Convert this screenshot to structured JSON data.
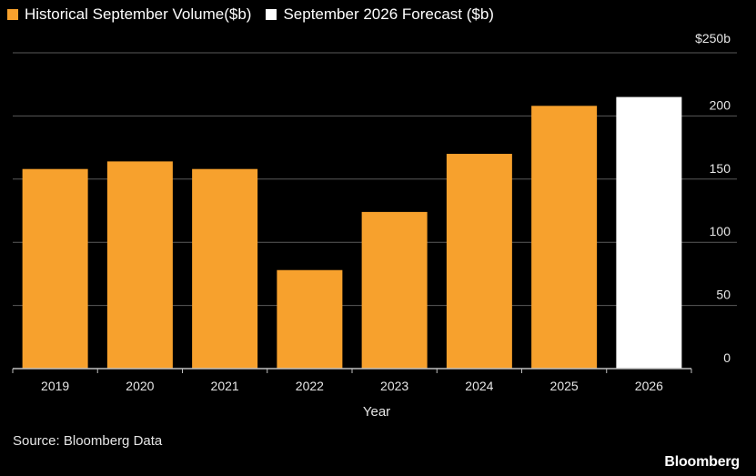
{
  "legend": [
    {
      "label": "Historical September Volume($b)",
      "color": "#f7a12d"
    },
    {
      "label": "September 2026 Forecast ($b)",
      "color": "#ffffff"
    }
  ],
  "source": "Source: Bloomberg Data",
  "brand": "Bloomberg",
  "chart_data": {
    "type": "bar",
    "categories": [
      "2019",
      "2020",
      "2021",
      "2022",
      "2023",
      "2024",
      "2025",
      "2026"
    ],
    "series": [
      {
        "name": "Historical September Volume($b)",
        "color": "#f7a12d",
        "values": [
          158,
          164,
          158,
          78,
          124,
          170,
          208,
          null
        ]
      },
      {
        "name": "September 2026 Forecast ($b)",
        "color": "#ffffff",
        "values": [
          null,
          null,
          null,
          null,
          null,
          null,
          null,
          215
        ]
      }
    ],
    "xlabel": "Year",
    "ylabel": "",
    "ylim": [
      0,
      250
    ],
    "yticks": [
      0,
      50,
      100,
      150,
      200,
      250
    ],
    "ytick_labels": [
      "0",
      "50",
      "100",
      "150",
      "200",
      "$250b"
    ],
    "y_axis_position": "right",
    "grid": true,
    "legend_position": "top-left"
  }
}
